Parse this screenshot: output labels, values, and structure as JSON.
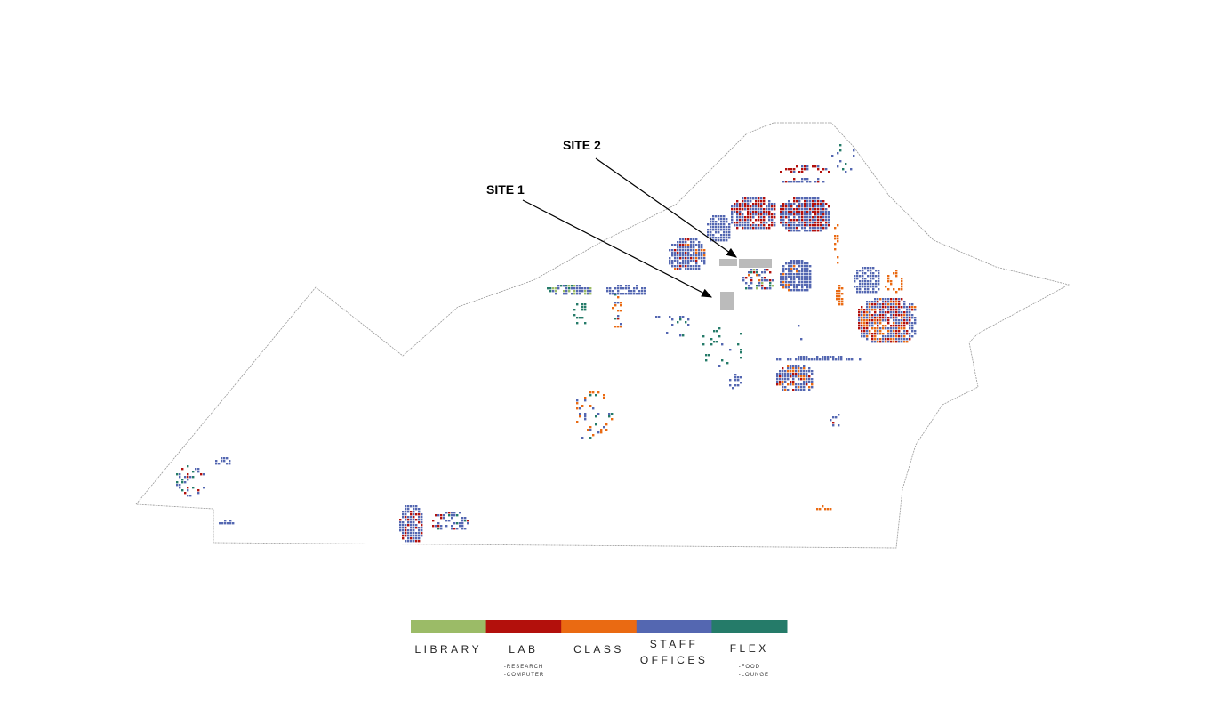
{
  "map": {
    "labels": [
      "SITE 1",
      "SITE 2"
    ],
    "legend": [
      {
        "name": "LIBRARY",
        "color": "#9bbb67"
      },
      {
        "name": "LAB",
        "color": "#b3100c",
        "notes": [
          "-RESEARCH",
          "-COMPUTER"
        ]
      },
      {
        "name": "CLASS",
        "color": "#ea6a12"
      },
      {
        "name": "STAFF OFFICES",
        "lines": [
          "STAFF",
          "OFFICES"
        ],
        "color": "#5467b1"
      },
      {
        "name": "FLEX",
        "color": "#257b69",
        "notes": [
          "-FOOD",
          "-LOUNGE"
        ]
      }
    ]
  }
}
